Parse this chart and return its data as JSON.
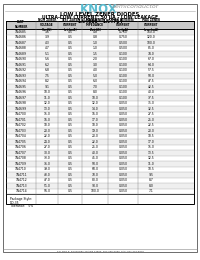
{
  "logo_text": "KNOX",
  "logo_sub": "Semiconductor",
  "title_line1": "LOW LEVEL ZENER DIODES",
  "title_line2": "ULTRA-LOW CURRENT: 50 μA - LOW LEAKAGE",
  "title_line3": "1N4685 - 1N4714",
  "rows": [
    [
      "1N4685",
      "3.6",
      "0.5",
      "0.8",
      "0.750",
      "160.0"
    ],
    [
      "1N4686",
      "3.9",
      "0.5",
      "0.8",
      "0.750",
      "120.0"
    ],
    [
      "1N4687",
      "4.3",
      "0.5",
      "1.0",
      "0.500",
      "100.0"
    ],
    [
      "1N4688",
      "4.7",
      "0.5",
      "1.0",
      "0.500",
      "85.0"
    ],
    [
      "1N4689",
      "5.1",
      "0.5",
      "1.5",
      "0.100",
      "74.0"
    ],
    [
      "1N4690",
      "5.6",
      "0.5",
      "2.0",
      "0.100",
      "67.0"
    ],
    [
      "1N4691",
      "6.2",
      "0.5",
      "3.0",
      "0.100",
      "64.0"
    ],
    [
      "1N4692",
      "6.8",
      "0.5",
      "4.0",
      "0.100",
      "57.5"
    ],
    [
      "1N4693",
      "7.5",
      "0.5",
      "5.0",
      "0.100",
      "50.0"
    ],
    [
      "1N4694",
      "8.2",
      "0.5",
      "6.0",
      "0.100",
      "47.5"
    ],
    [
      "1N4695",
      "9.1",
      "0.5",
      "7.0",
      "0.100",
      "42.5"
    ],
    [
      "1N4696",
      "10.0",
      "0.5",
      "8.0",
      "0.100",
      "40.0"
    ],
    [
      "1N4697",
      "11.0",
      "0.5",
      "10.0",
      "0.100",
      "37.5"
    ],
    [
      "1N4698",
      "12.0",
      "0.5",
      "12.0",
      "0.050",
      "35.0"
    ],
    [
      "1N4699",
      "13.0",
      "0.5",
      "14.0",
      "0.050",
      "32.5"
    ],
    [
      "1N4700",
      "15.0",
      "0.5",
      "16.0",
      "0.050",
      "27.5"
    ],
    [
      "1N4701",
      "16.0",
      "0.5",
      "17.0",
      "0.050",
      "25.0"
    ],
    [
      "1N4702",
      "18.0",
      "0.5",
      "18.0",
      "0.050",
      "22.5"
    ],
    [
      "1N4703",
      "20.0",
      "0.5",
      "19.0",
      "0.050",
      "20.0"
    ],
    [
      "1N4704",
      "22.0",
      "0.5",
      "20.0",
      "0.050",
      "18.5"
    ],
    [
      "1N4705",
      "24.0",
      "0.5",
      "22.0",
      "0.050",
      "17.0"
    ],
    [
      "1N4706",
      "27.0",
      "0.5",
      "25.0",
      "0.050",
      "15.0"
    ],
    [
      "1N4707",
      "30.0",
      "0.5",
      "40.0",
      "0.050",
      "13.5"
    ],
    [
      "1N4708",
      "33.0",
      "0.5",
      "45.0",
      "0.050",
      "12.5"
    ],
    [
      "1N4709",
      "36.0",
      "0.5",
      "50.0",
      "0.050",
      "11.0"
    ],
    [
      "1N4710",
      "39.0",
      "0.5",
      "60.0",
      "0.050",
      "10.5"
    ],
    [
      "1N4711",
      "43.0",
      "0.5",
      "70.0",
      "0.050",
      "9.5"
    ],
    [
      "1N4712",
      "47.0",
      "0.5",
      "80.0",
      "0.050",
      "8.7"
    ],
    [
      "1N4713",
      "51.0",
      "0.5",
      "90.0",
      "0.050",
      "8.0"
    ],
    [
      "1N4714",
      "56.0",
      "0.5",
      "100.0",
      "0.050",
      "7.1"
    ]
  ],
  "footer_pkg": "Package Style:",
  "footer_pkg_val": "DO-35",
  "footer_tol": "Tolerance:   5%",
  "bottom_text": "P.O. BOX 8  ROCKPORT, MAINE 04856  207-236-4383  FAX: 207-236-5970",
  "bg_color": "#ffffff",
  "logo_blue": "#5bbcd0",
  "logo_gray": "#999999",
  "header_bg": "#c8c8c8",
  "row_alt": "#efefef"
}
